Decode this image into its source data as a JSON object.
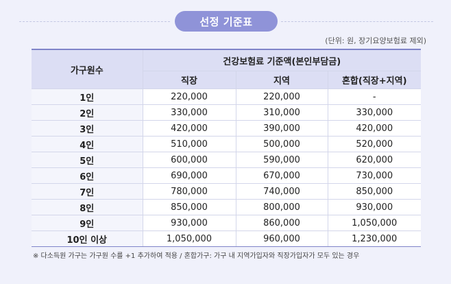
{
  "section_title": "선정 기준표",
  "unit_note": "(단위: 원, 장기요양보험료 제외)",
  "table": {
    "row_header": "가구원수",
    "group_header": "건강보험료 기준액(본인부담금)",
    "columns": [
      "직장",
      "지역",
      "혼합(직장+지역)"
    ],
    "rows": [
      {
        "size": "1인",
        "values": [
          "220,000",
          "220,000",
          "-"
        ]
      },
      {
        "size": "2인",
        "values": [
          "330,000",
          "310,000",
          "330,000"
        ]
      },
      {
        "size": "3인",
        "values": [
          "420,000",
          "390,000",
          "420,000"
        ]
      },
      {
        "size": "4인",
        "values": [
          "510,000",
          "500,000",
          "520,000"
        ]
      },
      {
        "size": "5인",
        "values": [
          "600,000",
          "590,000",
          "620,000"
        ]
      },
      {
        "size": "6인",
        "values": [
          "690,000",
          "670,000",
          "730,000"
        ]
      },
      {
        "size": "7인",
        "values": [
          "780,000",
          "740,000",
          "850,000"
        ]
      },
      {
        "size": "8인",
        "values": [
          "850,000",
          "800,000",
          "930,000"
        ]
      },
      {
        "size": "9인",
        "values": [
          "930,000",
          "860,000",
          "1,050,000"
        ]
      },
      {
        "size": "10인 이상",
        "values": [
          "1,050,000",
          "960,000",
          "1,230,000"
        ]
      }
    ]
  },
  "footnote": "※ 다소득원 가구는 가구원 수를 +1 추가하여 적용 / 혼합가구: 가구 내 지역가입자와 직장가입자가 모두 있는 경우",
  "colors": {
    "accent": "#8f93d8",
    "header_bg": "#dcdef4",
    "page_bg": "#f0f1fb",
    "rule": "#7f84c9"
  }
}
